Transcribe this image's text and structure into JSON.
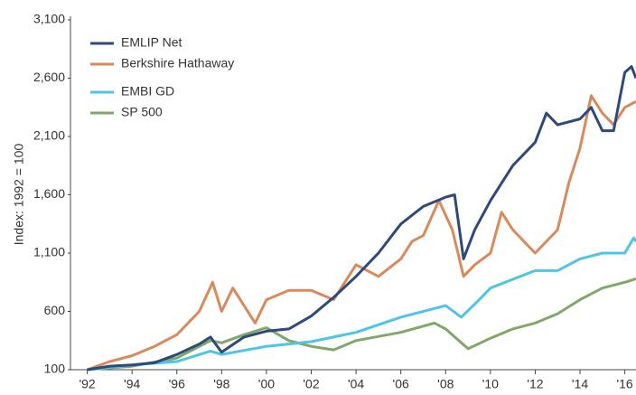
{
  "chart_data": {
    "type": "line",
    "ylabel": "Index: 1992 = 100",
    "xlim": [
      1991.25,
      2016.5
    ],
    "xticks": [
      {
        "value": 1992,
        "label": "'92"
      },
      {
        "value": 1994,
        "label": "'94"
      },
      {
        "value": 1996,
        "label": "'96"
      },
      {
        "value": 1998,
        "label": "'98"
      },
      {
        "value": 2000,
        "label": "'00"
      },
      {
        "value": 2002,
        "label": "'02"
      },
      {
        "value": 2004,
        "label": "'04"
      },
      {
        "value": 2006,
        "label": "'06"
      },
      {
        "value": 2008,
        "label": "'08"
      },
      {
        "value": 2010,
        "label": "'10"
      },
      {
        "value": 2012,
        "label": "'12"
      },
      {
        "value": 2014,
        "label": "'14"
      },
      {
        "value": 2016,
        "label": "'16"
      }
    ],
    "ylim": [
      100,
      3100
    ],
    "yticks": [
      100,
      600,
      {
        "value": 1100,
        "label": "1,100"
      },
      {
        "value": 1600,
        "label": "1,600"
      },
      {
        "value": 2100,
        "label": "2,100"
      },
      {
        "value": 2600,
        "label": "2,600"
      },
      {
        "value": 3100,
        "label": "3,100"
      }
    ],
    "series": [
      {
        "name": "EMLIP Net",
        "color": "#2d4a7a",
        "x": [
          1992,
          1993,
          1994,
          1995,
          1996,
          1997,
          1997.5,
          1998,
          1999,
          2000,
          2001,
          2002,
          2003,
          2004,
          2005,
          2006,
          2007,
          2008,
          2008.4,
          2008.8,
          2009.3,
          2010,
          2011,
          2011.5,
          2012,
          2012.5,
          2013,
          2014,
          2014.5,
          2015,
          2015.5,
          2016,
          2016.3,
          2016.5
        ],
        "values": [
          100,
          130,
          140,
          160,
          230,
          320,
          380,
          250,
          380,
          430,
          450,
          560,
          720,
          900,
          1100,
          1350,
          1500,
          1580,
          1600,
          1050,
          1300,
          1550,
          1850,
          1950,
          2050,
          2300,
          2200,
          2250,
          2350,
          2150,
          2150,
          2650,
          2700,
          2600
        ]
      },
      {
        "name": "Berkshire Hathaway",
        "color": "#d98a5a",
        "x": [
          1992,
          1993,
          1994,
          1995,
          1996,
          1997,
          1997.6,
          1998,
          1998.5,
          1999.5,
          2000,
          2001,
          2002,
          2003,
          2003.5,
          2004,
          2005,
          2006,
          2006.5,
          2007,
          2007.7,
          2008.3,
          2008.8,
          2009.3,
          2010,
          2010.5,
          2011,
          2012,
          2013,
          2013.5,
          2014,
          2014.5,
          2015,
          2015.5,
          2016,
          2016.5
        ],
        "values": [
          100,
          170,
          220,
          300,
          400,
          600,
          850,
          600,
          800,
          500,
          700,
          780,
          780,
          700,
          850,
          1000,
          900,
          1050,
          1200,
          1250,
          1550,
          1300,
          900,
          1000,
          1100,
          1450,
          1300,
          1100,
          1300,
          1700,
          2000,
          2450,
          2300,
          2200,
          2350,
          2400
        ]
      },
      {
        "name": "EMBI GD",
        "color": "#4fc3e8",
        "x": [
          1992,
          1994,
          1996,
          1997.5,
          1998,
          2000,
          2002,
          2004,
          2006,
          2008,
          2008.7,
          2009.5,
          2010,
          2012,
          2013,
          2014,
          2015,
          2016,
          2016.4,
          2016.5
        ],
        "values": [
          100,
          140,
          170,
          260,
          230,
          300,
          340,
          420,
          550,
          650,
          550,
          700,
          800,
          950,
          950,
          1050,
          1100,
          1100,
          1230,
          1200
        ]
      },
      {
        "name": "SP 500",
        "color": "#7fa86a",
        "x": [
          1992,
          1994,
          1996,
          1997.5,
          1998,
          1999,
          2000,
          2001,
          2002,
          2003,
          2004,
          2006,
          2007.5,
          2008,
          2009,
          2010,
          2011,
          2012,
          2013,
          2014,
          2015,
          2016,
          2016.5
        ],
        "values": [
          100,
          130,
          200,
          350,
          330,
          400,
          460,
          350,
          300,
          270,
          350,
          420,
          500,
          450,
          280,
          370,
          450,
          500,
          580,
          700,
          800,
          850,
          880
        ]
      }
    ]
  }
}
